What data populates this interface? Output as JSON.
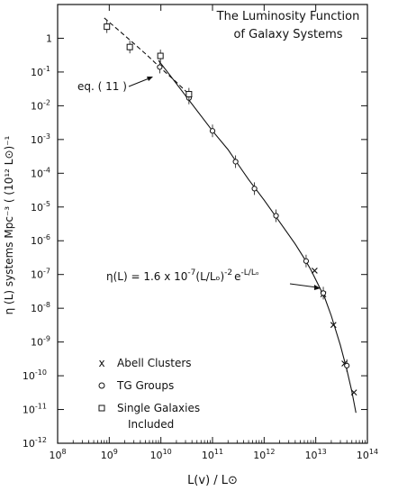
{
  "chart_data": {
    "type": "scatter",
    "title": "The Luminosity Function of Galaxy Systems",
    "title_lines": [
      "The Luminosity Function",
      "of Galaxy Systems"
    ],
    "xlabel": "L(v) / L⊙",
    "ylabel": "η (L) systems Mpc⁻³ ( (10¹² L⊙)⁻¹",
    "x_log": true,
    "y_log": true,
    "xlim": [
      100000000.0,
      100000000000000.0
    ],
    "ylim": [
      1e-12,
      10
    ],
    "grid": false,
    "legend_position": "lower-left",
    "x_ticks": [
      {
        "base": "10",
        "exp": "8",
        "value": 100000000.0
      },
      {
        "base": "10",
        "exp": "9",
        "value": 1000000000.0
      },
      {
        "base": "10",
        "exp": "10",
        "value": 10000000000.0
      },
      {
        "base": "10",
        "exp": "11",
        "value": 100000000000.0
      },
      {
        "base": "10",
        "exp": "12",
        "value": 1000000000000.0
      },
      {
        "base": "10",
        "exp": "13",
        "value": 10000000000000.0
      },
      {
        "base": "10",
        "exp": "14",
        "value": 100000000000000.0
      }
    ],
    "y_ticks": [
      {
        "base": "1",
        "exp": "",
        "value": 1
      },
      {
        "base": "10",
        "exp": "-1",
        "value": 0.1
      },
      {
        "base": "10",
        "exp": "-2",
        "value": 0.01
      },
      {
        "base": "10",
        "exp": "-3",
        "value": 0.001
      },
      {
        "base": "10",
        "exp": "-4",
        "value": 0.0001
      },
      {
        "base": "10",
        "exp": "-5",
        "value": 1e-05
      },
      {
        "base": "10",
        "exp": "-6",
        "value": 1e-06
      },
      {
        "base": "10",
        "exp": "-7",
        "value": 1e-07
      },
      {
        "base": "10",
        "exp": "-8",
        "value": 1e-08
      },
      {
        "base": "10",
        "exp": "-9",
        "value": 1e-09
      },
      {
        "base": "10",
        "exp": "-10",
        "value": 1e-10
      },
      {
        "base": "10",
        "exp": "-11",
        "value": 1e-11
      },
      {
        "base": "10",
        "exp": "-12",
        "value": 1e-12
      }
    ],
    "series": [
      {
        "name": "Abell Clusters",
        "marker": "x",
        "points": [
          {
            "x": 9500000000000.0,
            "y": 1.3e-07
          },
          {
            "x": 14000000000000.0,
            "y": 2.6e-08
          },
          {
            "x": 22000000000000.0,
            "y": 3.2e-09
          },
          {
            "x": 36000000000000.0,
            "y": 2.3e-10
          },
          {
            "x": 55000000000000.0,
            "y": 3.2e-11
          }
        ]
      },
      {
        "name": "TG Groups",
        "marker": "circle",
        "points": [
          {
            "x": 9500000000.0,
            "y": 0.14
          },
          {
            "x": 35000000000.0,
            "y": 0.017
          },
          {
            "x": 100000000000.0,
            "y": 0.0018
          },
          {
            "x": 280000000000.0,
            "y": 0.00022
          },
          {
            "x": 650000000000.0,
            "y": 3.5e-05
          },
          {
            "x": 1700000000000.0,
            "y": 5.5e-06
          },
          {
            "x": 6500000000000.0,
            "y": 2.5e-07
          },
          {
            "x": 14000000000000.0,
            "y": 2.8e-08
          },
          {
            "x": 40000000000000.0,
            "y": 2e-10
          }
        ]
      },
      {
        "name": "Single Galaxies Included",
        "name_lines": [
          "Single Galaxies",
          "Included"
        ],
        "marker": "square",
        "points": [
          {
            "x": 900000000.0,
            "y": 2.2
          },
          {
            "x": 2500000000.0,
            "y": 0.55
          },
          {
            "x": 9800000000.0,
            "y": 0.3
          },
          {
            "x": 35000000000.0,
            "y": 0.022
          }
        ]
      }
    ],
    "curves": [
      {
        "style": "solid",
        "points": [
          {
            "x": 9000000000.0,
            "y": 0.22
          },
          {
            "x": 15000000000.0,
            "y": 0.08
          },
          {
            "x": 30000000000.0,
            "y": 0.02
          },
          {
            "x": 60000000000.0,
            "y": 0.005
          },
          {
            "x": 100000000000.0,
            "y": 0.0018
          },
          {
            "x": 200000000000.0,
            "y": 0.0005
          },
          {
            "x": 300000000000.0,
            "y": 0.0002
          },
          {
            "x": 500000000000.0,
            "y": 6.5e-05
          },
          {
            "x": 1000000000000.0,
            "y": 1.6e-05
          },
          {
            "x": 2000000000000.0,
            "y": 3.6e-06
          },
          {
            "x": 4000000000000.0,
            "y": 8e-07
          },
          {
            "x": 6000000000000.0,
            "y": 3e-07
          },
          {
            "x": 8000000000000.0,
            "y": 1.4e-07
          },
          {
            "x": 10000000000000.0,
            "y": 7e-08
          },
          {
            "x": 15000000000000.0,
            "y": 2e-08
          },
          {
            "x": 20000000000000.0,
            "y": 6e-09
          },
          {
            "x": 30000000000000.0,
            "y": 8e-10
          },
          {
            "x": 40000000000000.0,
            "y": 1.5e-10
          },
          {
            "x": 50000000000000.0,
            "y": 3.5e-11
          },
          {
            "x": 60000000000000.0,
            "y": 8e-12
          }
        ]
      },
      {
        "style": "dashed",
        "points": [
          {
            "x": 800000000.0,
            "y": 4.0
          },
          {
            "x": 2000000000.0,
            "y": 1.2
          },
          {
            "x": 5000000000.0,
            "y": 0.35
          },
          {
            "x": 10000000000.0,
            "y": 0.13
          },
          {
            "x": 20000000000.0,
            "y": 0.05
          },
          {
            "x": 40000000000.0,
            "y": 0.018
          }
        ]
      }
    ],
    "annotations": {
      "eq11": "eq. ( 11 )",
      "formula_lhs": "η(L) = 1.6 x 10",
      "formula_exp1": "-7",
      "formula_mid": "(L/Lₒ)",
      "formula_exp2": "-2",
      "formula_e": "e",
      "formula_exp3": "-L/Lₒ"
    }
  }
}
